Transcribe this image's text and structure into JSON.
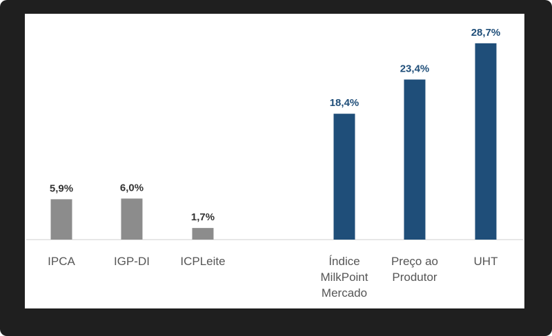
{
  "chart_data": {
    "type": "bar",
    "categories": [
      "IPCA",
      "IGP-DI",
      "ICPLeite",
      "Índice MilkPoint Mercado",
      "Preço ao Produtor",
      "UHT"
    ],
    "category_lines": [
      [
        "IPCA"
      ],
      [
        "IGP-DI"
      ],
      [
        "ICPLeite"
      ],
      [
        "Índice",
        "MilkPoint",
        "Mercado"
      ],
      [
        "Preço ao",
        "Produtor"
      ],
      [
        "UHT"
      ]
    ],
    "values": [
      5.9,
      6.0,
      1.7,
      18.4,
      23.4,
      28.7
    ],
    "value_labels": [
      "5,9%",
      "6,0%",
      "1,7%",
      "18,4%",
      "23,4%",
      "28,7%"
    ],
    "unit": "%",
    "groups": [
      {
        "categories": [
          "IPCA",
          "IGP-DI",
          "ICPLeite"
        ],
        "color": "#8c8c8c",
        "label_color": "#333333"
      },
      {
        "categories": [
          "Índice MilkPoint Mercado",
          "Preço ao Produtor",
          "UHT"
        ],
        "color": "#1f4e79",
        "label_color": "#1f4e79"
      }
    ],
    "title": "",
    "xlabel": "",
    "ylabel": "",
    "ylim": [
      0,
      31
    ],
    "grid": false,
    "legend": "none"
  }
}
